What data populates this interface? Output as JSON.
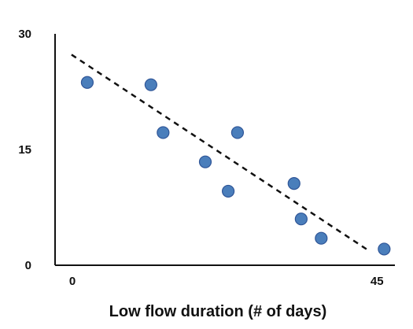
{
  "chart_data": {
    "type": "scatter",
    "title": "",
    "xlabel": "Low flow duration (# of days)",
    "ylabel": "",
    "xlim": [
      0,
      47.5
    ],
    "ylim": [
      0,
      30
    ],
    "x_ticks": [
      {
        "value": 0,
        "label": "0"
      },
      {
        "value": 45,
        "label": "45"
      }
    ],
    "y_ticks": [
      {
        "value": 0,
        "label": "0"
      },
      {
        "value": 15,
        "label": "15"
      },
      {
        "value": 30,
        "label": "30"
      }
    ],
    "grid": false,
    "legend": "none",
    "series": [
      {
        "points": [
          {
            "x": 4.5,
            "y": 23.7
          },
          {
            "x": 13.4,
            "y": 23.4
          },
          {
            "x": 15.1,
            "y": 17.2
          },
          {
            "x": 21.0,
            "y": 13.4
          },
          {
            "x": 24.2,
            "y": 9.6
          },
          {
            "x": 25.5,
            "y": 17.2
          },
          {
            "x": 33.4,
            "y": 10.6
          },
          {
            "x": 34.4,
            "y": 6.0
          },
          {
            "x": 37.2,
            "y": 3.5
          },
          {
            "x": 46.0,
            "y": 2.1
          }
        ]
      }
    ],
    "trendline": {
      "style": "dashed",
      "x": [
        2.3,
        44.0
      ],
      "y": [
        27.3,
        1.8
      ]
    },
    "colors": {
      "point_fill": "#4a7ebb",
      "point_stroke": "#2f5597",
      "axis": "#111111",
      "trendline": "#111111"
    }
  }
}
